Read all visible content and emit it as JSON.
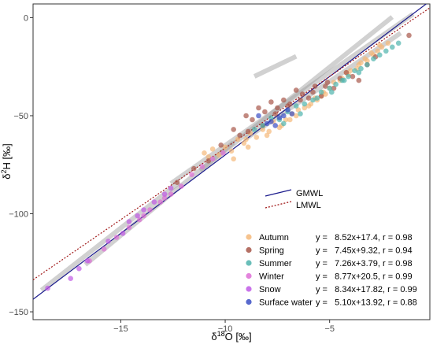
{
  "chart_data": {
    "type": "scatter",
    "xlabel_main": "δ",
    "xlabel_sup": "18",
    "xlabel_rest": "O [‰]",
    "ylabel_main": "δ",
    "ylabel_sup": "2",
    "ylabel_rest": "H [‰]",
    "xlim": [
      -19.2,
      -0.2
    ],
    "ylim": [
      -154,
      7
    ],
    "x_ticks": [
      -15,
      -10,
      -5
    ],
    "x_tick_labels": [
      "−15",
      "−10",
      "−5"
    ],
    "y_ticks": [
      0,
      -50,
      -100,
      -150
    ],
    "y_tick_labels": [
      "0",
      "−50",
      "−100",
      "−150"
    ],
    "grid": false,
    "reference_lines": [
      {
        "name": "GMWL",
        "slope": 8,
        "intercept": 10,
        "color": "#1a1a8c",
        "dash": "solid"
      },
      {
        "name": "LMWL",
        "slope": 7.3,
        "intercept": 6.5,
        "color": "#a01818",
        "dash": "dotted"
      }
    ],
    "series": [
      {
        "name": "Autumn",
        "color": "#f5b97a",
        "equation": "y =   8.52x+17.4, r = 0.98",
        "slope": 8.52,
        "intercept": 17.4,
        "x_range": [
          -11.2,
          -2.0
        ],
        "x": [
          -11.0,
          -10.6,
          -10.3,
          -10.0,
          -9.7,
          -9.4,
          -9.1,
          -8.8,
          -8.5,
          -8.2,
          -8.0,
          -7.7,
          -7.4,
          -7.1,
          -6.8,
          -6.5,
          -6.2,
          -5.9,
          -5.6,
          -5.3,
          -5.0,
          -4.8,
          -4.5,
          -4.2,
          -4.0,
          -3.7,
          -3.5,
          -3.2,
          -3.0,
          -2.7,
          -2.5,
          -2.2,
          -9.6,
          -8.9,
          -7.9,
          -6.9,
          -6.0,
          -5.2,
          -4.4,
          -3.6,
          -2.9,
          -10.8,
          -9.0,
          -7.3,
          -5.7,
          -4.1,
          -3.3,
          -2.6,
          -6.6,
          -5.4
        ],
        "y": [
          -69,
          -67,
          -70,
          -66,
          -68,
          -62,
          -64,
          -59,
          -61,
          -57,
          -60,
          -53,
          -56,
          -52,
          -49,
          -47,
          -46,
          -44,
          -42,
          -38,
          -36,
          -33,
          -32,
          -28,
          -27,
          -26,
          -23,
          -22,
          -18,
          -17,
          -15,
          -13,
          -72,
          -66,
          -58,
          -52,
          -45,
          -39,
          -31,
          -24,
          -19,
          -71,
          -62,
          -55,
          -41,
          -29,
          -21,
          -14,
          -50,
          -40
        ]
      },
      {
        "name": "Spring",
        "color": "#a8574a",
        "equation": "y =   7.45x+9.32, r = 0.94",
        "slope": 7.45,
        "intercept": 9.32,
        "x_range": [
          -12.6,
          -1.0
        ],
        "x": [
          -12.3,
          -11.5,
          -10.8,
          -10.2,
          -9.6,
          -9.3,
          -9.0,
          -8.7,
          -8.4,
          -8.1,
          -7.8,
          -7.5,
          -7.2,
          -6.9,
          -6.6,
          -6.3,
          -6.0,
          -5.7,
          -5.4,
          -5.1,
          -4.8,
          -4.5,
          -4.2,
          -3.9,
          -3.6,
          -3.2,
          -2.8,
          -1.2,
          -8.9,
          -8.2,
          -7.6,
          -7.0,
          -6.4,
          -5.8,
          -5.2
        ],
        "y": [
          -84,
          -77,
          -73,
          -65,
          -57,
          -60,
          -50,
          -52,
          -46,
          -48,
          -43,
          -46,
          -42,
          -44,
          -37,
          -39,
          -41,
          -35,
          -40,
          -33,
          -36,
          -31,
          -28,
          -30,
          -32,
          -24,
          -20,
          -9,
          -58,
          -55,
          -49,
          -45,
          -42,
          -38,
          -35
        ]
      },
      {
        "name": "Summer",
        "color": "#4fb3ad",
        "equation": "y =   7.26x+3.79, r = 0.98",
        "slope": 7.26,
        "intercept": 3.79,
        "x_range": [
          -9.0,
          -1.6
        ],
        "x": [
          -8.6,
          -8.2,
          -7.8,
          -7.4,
          -7.0,
          -6.6,
          -6.2,
          -5.8,
          -5.4,
          -5.0,
          -4.7,
          -4.4,
          -4.1,
          -3.8,
          -3.5,
          -3.2,
          -2.9,
          -2.6,
          -2.3,
          -2.0,
          -1.7,
          -7.2,
          -6.4,
          -5.6,
          -4.9,
          -4.3,
          -3.6
        ],
        "y": [
          -57,
          -55,
          -51,
          -52,
          -48,
          -45,
          -44,
          -42,
          -38,
          -36,
          -34,
          -32,
          -30,
          -27,
          -26,
          -24,
          -21,
          -19,
          -17,
          -15,
          -13,
          -54,
          -49,
          -41,
          -38,
          -32,
          -28
        ]
      },
      {
        "name": "Winter",
        "color": "#de6fd6",
        "equation": "y =   8.77x+20.5, r = 0.99",
        "slope": 8.77,
        "intercept": 20.5,
        "x_range": [
          -16.7,
          -9.6
        ],
        "x": [
          -16.5,
          -15.8,
          -15.2,
          -14.6,
          -14.1,
          -13.6,
          -13.1,
          -12.6,
          -12.1,
          -11.6,
          -11.1,
          -10.6,
          -10.1,
          -13.9,
          -12.9
        ],
        "y": [
          -124,
          -118,
          -112,
          -107,
          -103,
          -98,
          -94,
          -90,
          -86,
          -80,
          -76,
          -72,
          -69,
          -101,
          -92
        ]
      },
      {
        "name": "Snow",
        "color": "#c05ae6",
        "equation": "y =   8.34x+17.82, r = 0.99",
        "slope": 8.34,
        "intercept": 17.82,
        "x_range": [
          -18.8,
          -12.2
        ],
        "x": [
          -18.5,
          -17.4,
          -17.0,
          -16.6,
          -15.6,
          -14.9,
          -14.6,
          -14.2,
          -13.9,
          -13.4,
          -12.9,
          -12.6
        ],
        "y": [
          -138,
          -133,
          -128,
          -124,
          -114,
          -110,
          -104,
          -101,
          -98,
          -94,
          -90,
          -87
        ]
      },
      {
        "name": "Surface water",
        "color": "#3b4fc4",
        "equation": "y =   5.10x+13.92, r = 0.88",
        "slope": 5.1,
        "intercept": 13.92,
        "x_range": [
          -8.6,
          -6.6
        ],
        "x": [
          -8.4,
          -8.0,
          -7.8,
          -7.6,
          -7.4,
          -7.2,
          -7.0,
          -6.8
        ],
        "y": [
          -50,
          -54,
          -53,
          -55,
          -51,
          -50,
          -47,
          -49
        ]
      }
    ]
  }
}
